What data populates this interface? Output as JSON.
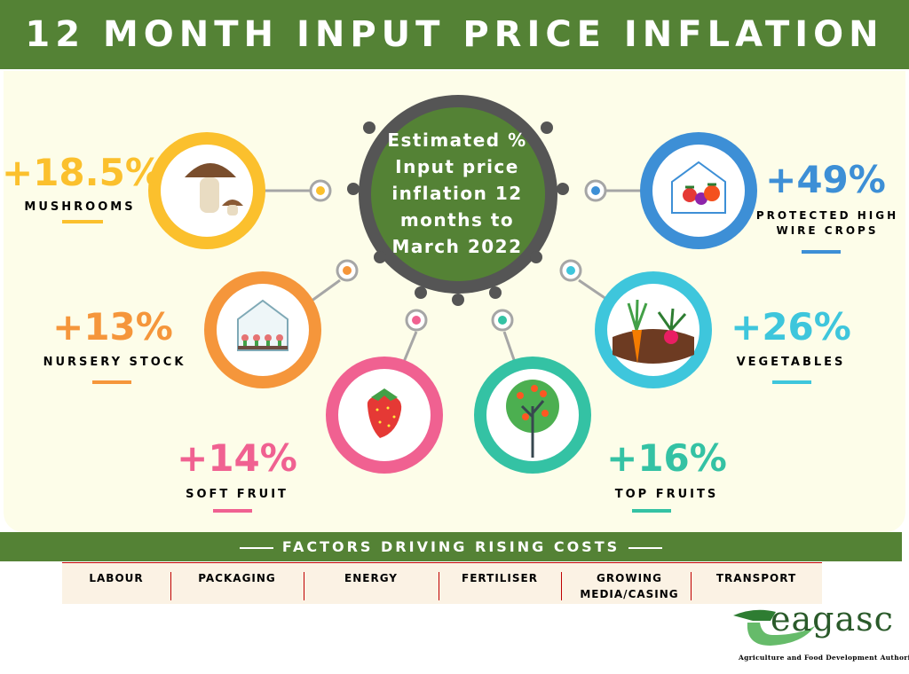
{
  "header": {
    "title": "12 MONTH INPUT PRICE INFLATION"
  },
  "center": {
    "lines": [
      "Estimated %",
      "Input price",
      "inflation 12",
      "months to",
      "March 2022"
    ]
  },
  "categories": [
    {
      "id": "mushrooms",
      "value": "+18.5%",
      "label_lines": [
        "MUSHROOMS"
      ],
      "color": "#fbc02d",
      "icon": "mushroom-icon"
    },
    {
      "id": "protected",
      "value": "+49%",
      "label_lines": [
        "PROTECTED HIGH",
        "WIRE CROPS"
      ],
      "color": "#3d8fd6",
      "icon": "greenhouse-tomato-icon"
    },
    {
      "id": "nursery",
      "value": "+13%",
      "label_lines": [
        "NURSERY STOCK"
      ],
      "color": "#f5963b",
      "icon": "greenhouse-seedlings-icon"
    },
    {
      "id": "vegetables",
      "value": "+26%",
      "label_lines": [
        "VEGETABLES"
      ],
      "color": "#3ec6dc",
      "icon": "carrot-radish-icon"
    },
    {
      "id": "softfruit",
      "value": "+14%",
      "label_lines": [
        "SOFT FRUIT"
      ],
      "color": "#f06191",
      "icon": "strawberry-icon"
    },
    {
      "id": "topfruits",
      "value": "+16%",
      "label_lines": [
        "TOP FRUITS"
      ],
      "color": "#34c2a4",
      "icon": "fruit-tree-icon"
    }
  ],
  "factors": {
    "title": "FACTORS DRIVING RISING COSTS",
    "items": [
      {
        "lines": [
          "LABOUR"
        ]
      },
      {
        "lines": [
          "PACKAGING"
        ]
      },
      {
        "lines": [
          "ENERGY"
        ]
      },
      {
        "lines": [
          "FERTILISER"
        ]
      },
      {
        "lines": [
          "GROWING",
          "MEDIA/CASING"
        ]
      },
      {
        "lines": [
          "TRANSPORT"
        ]
      }
    ]
  },
  "logo": {
    "name": "eagasc",
    "tagline": "Agriculture and Food Development Authority"
  },
  "colors": {
    "header_green": "#548235",
    "panel": "#fdfde9",
    "ring": "#555555",
    "separator": "#c00000"
  }
}
